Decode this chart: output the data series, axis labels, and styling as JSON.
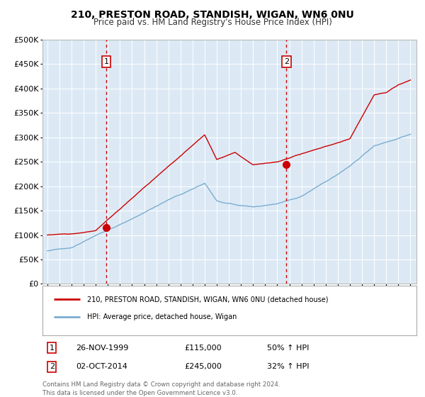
{
  "title": "210, PRESTON ROAD, STANDISH, WIGAN, WN6 0NU",
  "subtitle": "Price paid vs. HM Land Registry's House Price Index (HPI)",
  "legend_line1": "210, PRESTON ROAD, STANDISH, WIGAN, WN6 0NU (detached house)",
  "legend_line2": "HPI: Average price, detached house, Wigan",
  "annotation1_label": "1",
  "annotation1_date": "26-NOV-1999",
  "annotation1_price": 115000,
  "annotation1_hpi": "50% ↑ HPI",
  "annotation2_label": "2",
  "annotation2_date": "02-OCT-2014",
  "annotation2_price": 245000,
  "annotation2_hpi": "32% ↑ HPI",
  "footer1": "Contains HM Land Registry data © Crown copyright and database right 2024.",
  "footer2": "This data is licensed under the Open Government Licence v3.0.",
  "red_color": "#cc0000",
  "blue_color": "#7aadcf",
  "background_color": "#dce9f5",
  "vline_color": "#cc0000",
  "ylim": [
    0,
    500000
  ],
  "yticks": [
    0,
    50000,
    100000,
    150000,
    200000,
    250000,
    300000,
    350000,
    400000,
    450000,
    500000
  ],
  "xlim_start": 1994.6,
  "xlim_end": 2025.5,
  "sale1_year": 1999.88,
  "sale2_year": 2014.75
}
